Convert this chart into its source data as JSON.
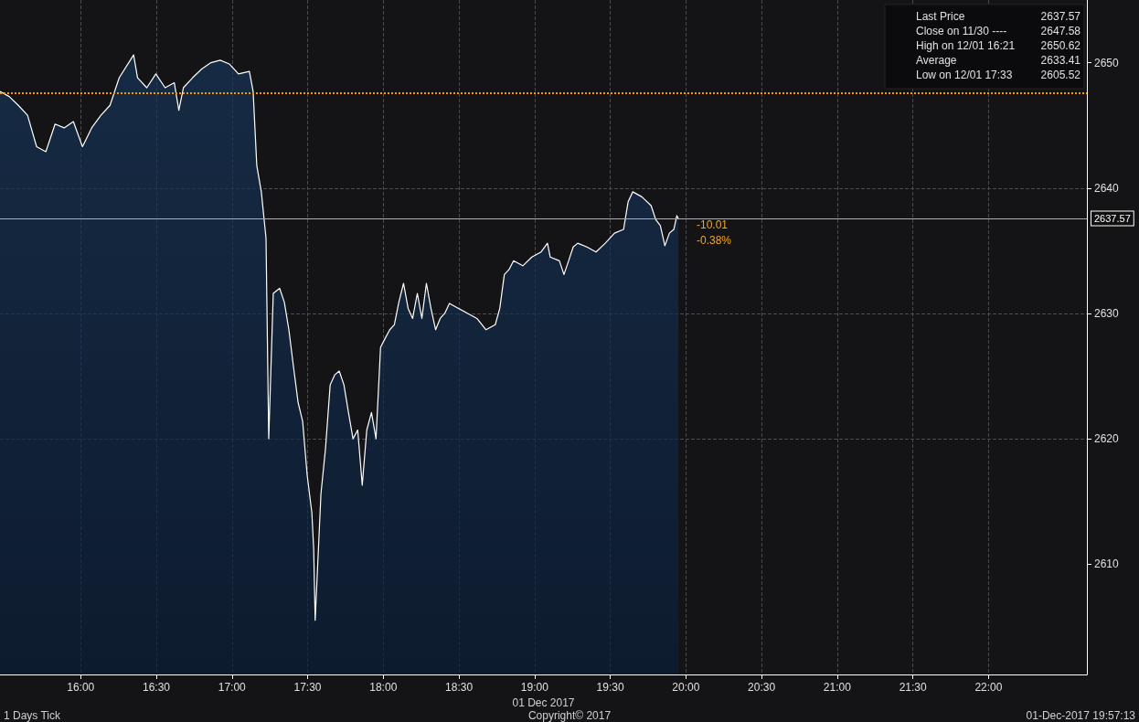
{
  "chart_data": {
    "type": "area",
    "xlabel": "01 Dec 2017",
    "x": [
      15.467,
      15.528,
      15.588,
      15.649,
      15.709,
      15.77,
      15.831,
      15.891,
      15.952,
      16.012,
      16.073,
      16.134,
      16.194,
      16.255,
      16.35,
      16.376,
      16.437,
      16.497,
      16.558,
      16.619,
      16.649,
      16.679,
      16.74,
      16.8,
      16.861,
      16.922,
      16.982,
      17.043,
      17.115,
      17.14,
      17.164,
      17.194,
      17.225,
      17.243,
      17.273,
      17.315,
      17.346,
      17.376,
      17.406,
      17.437,
      17.467,
      17.497,
      17.528,
      17.54,
      17.55,
      17.588,
      17.618,
      17.649,
      17.679,
      17.709,
      17.74,
      17.77,
      17.8,
      17.831,
      17.861,
      17.891,
      17.922,
      17.952,
      17.982,
      18.012,
      18.043,
      18.073,
      18.103,
      18.134,
      18.164,
      18.194,
      18.225,
      18.255,
      18.285,
      18.315,
      18.346,
      18.376,
      18.406,
      18.437,
      18.497,
      18.558,
      18.619,
      18.679,
      18.74,
      18.77,
      18.8,
      18.831,
      18.861,
      18.922,
      18.982,
      19.043,
      19.085,
      19.103,
      19.164,
      19.194,
      19.225,
      19.255,
      19.285,
      19.346,
      19.406,
      19.467,
      19.528,
      19.588,
      19.618,
      19.649,
      19.709,
      19.77,
      19.8,
      19.831,
      19.861,
      19.891,
      19.92,
      19.94,
      19.95
    ],
    "series": [
      {
        "color": "#ffffff",
        "values": [
          2647.7,
          2647.3,
          2646.6,
          2645.8,
          2643.3,
          2642.9,
          2645.1,
          2644.8,
          2645.3,
          2643.3,
          2644.8,
          2645.8,
          2646.6,
          2648.8,
          2650.62,
          2648.8,
          2648.0,
          2649.1,
          2648.0,
          2648.4,
          2646.2,
          2648.0,
          2648.8,
          2649.5,
          2650.0,
          2650.2,
          2649.9,
          2649.1,
          2649.3,
          2647.7,
          2641.8,
          2639.7,
          2636.0,
          2620.0,
          2631.6,
          2632.0,
          2630.9,
          2628.7,
          2625.8,
          2622.9,
          2621.4,
          2617.1,
          2614.1,
          2611.2,
          2605.52,
          2615.6,
          2619.2,
          2624.3,
          2625.1,
          2625.4,
          2624.3,
          2622.1,
          2620.0,
          2620.7,
          2616.3,
          2620.7,
          2622.1,
          2620.0,
          2627.3,
          2628.0,
          2628.7,
          2629.1,
          2630.9,
          2632.4,
          2630.4,
          2629.6,
          2631.6,
          2629.6,
          2632.4,
          2630.4,
          2628.7,
          2629.6,
          2630.0,
          2630.8,
          2630.4,
          2630.0,
          2629.6,
          2628.7,
          2629.1,
          2630.4,
          2633.1,
          2633.5,
          2634.2,
          2633.8,
          2634.5,
          2634.9,
          2635.6,
          2634.5,
          2634.2,
          2633.1,
          2634.2,
          2635.3,
          2635.6,
          2635.3,
          2634.9,
          2635.6,
          2636.4,
          2636.7,
          2638.9,
          2639.7,
          2639.3,
          2638.6,
          2637.5,
          2637.0,
          2635.4,
          2636.4,
          2636.7,
          2637.8,
          2637.57
        ]
      }
    ],
    "xlim": [
      15.467,
      22.65
    ],
    "xticks": [
      {
        "value": 16,
        "label": "16:00"
      },
      {
        "value": 16.5,
        "label": "16:30"
      },
      {
        "value": 17,
        "label": "17:00"
      },
      {
        "value": 17.5,
        "label": "17:30"
      },
      {
        "value": 18,
        "label": "18:00"
      },
      {
        "value": 18.5,
        "label": "18:30"
      },
      {
        "value": 19,
        "label": "19:00"
      },
      {
        "value": 19.5,
        "label": "19:30"
      },
      {
        "value": 20,
        "label": "20:00"
      },
      {
        "value": 20.5,
        "label": "20:30"
      },
      {
        "value": 21,
        "label": "21:00"
      },
      {
        "value": 21.5,
        "label": "21:30"
      },
      {
        "value": 22,
        "label": "22:00"
      }
    ],
    "ylim": [
      2601.2,
      2655
    ],
    "yticks": [
      2610,
      2620,
      2630,
      2640,
      2650
    ],
    "grid": true,
    "line_style": "solid",
    "ref_lines": [
      {
        "axis": "y",
        "value": 2647.58,
        "color": "#ff9900",
        "line_style": "dotted"
      },
      {
        "axis": "y",
        "value": 2637.57,
        "label": "2637.57",
        "color": "#f5a623",
        "line_style": "solid"
      }
    ],
    "annotations": [
      "Last Price",
      "2637.57",
      "Close on 11/30 ----",
      "2647.58",
      "High on 12/01 16:21",
      "2650.62",
      "Average",
      "2633.41",
      "Low on 12/01 17:33",
      "2605.52",
      "-10.01",
      "-0.38%",
      "1 Days Tick",
      "Copyright© 2017",
      "01-Dec-2017 19:57:13"
    ]
  }
}
